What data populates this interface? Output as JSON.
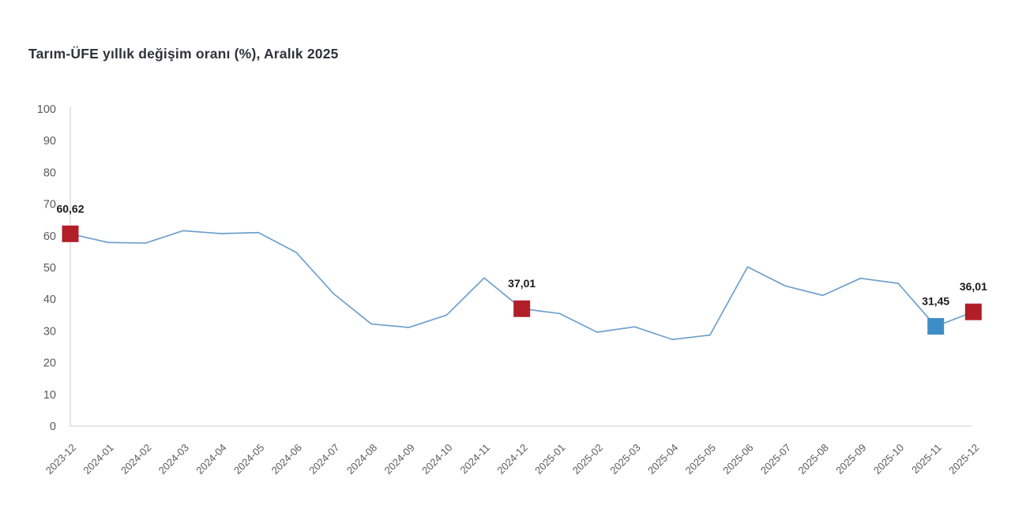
{
  "chart_data": {
    "type": "line",
    "title": "Tarım-ÜFE yıllık değişim oranı (%), Aralık 2025",
    "categories": [
      "2023-12",
      "2024-01",
      "2024-02",
      "2024-03",
      "2024-04",
      "2024-05",
      "2024-06",
      "2024-07",
      "2024-08",
      "2024-09",
      "2024-10",
      "2024-11",
      "2024-12",
      "2025-01",
      "2025-02",
      "2025-03",
      "2025-04",
      "2025-05",
      "2025-06",
      "2025-07",
      "2025-08",
      "2025-09",
      "2025-10",
      "2025-11",
      "2025-12"
    ],
    "values": [
      60.62,
      57.9,
      57.7,
      61.6,
      60.7,
      61.0,
      54.8,
      41.7,
      32.2,
      31.1,
      35.0,
      46.7,
      37.01,
      35.5,
      29.6,
      31.3,
      27.3,
      28.7,
      50.2,
      44.2,
      41.2,
      46.6,
      45.0,
      31.45,
      36.01
    ],
    "ylim": [
      0,
      100
    ],
    "y_ticks": [
      0,
      10,
      20,
      30,
      40,
      50,
      60,
      70,
      80,
      90,
      100
    ],
    "grid": false,
    "legend": "none",
    "x_tick_rotation": -45,
    "annotations": [
      {
        "index": 0,
        "label": "60,62",
        "marker": "marker_red"
      },
      {
        "index": 12,
        "label": "37,01",
        "marker": "marker_red"
      },
      {
        "index": 23,
        "label": "31,45",
        "marker": "marker_blue"
      },
      {
        "index": 24,
        "label": "36,01",
        "marker": "marker_red"
      }
    ],
    "colors": {
      "line": "#6FA0CC",
      "marker_red": "#B21E28",
      "marker_blue": "#3D8EC6",
      "axis": "#CBCBCB",
      "tick_label": "#5A5A5A",
      "annotation_label": "#1A1A1A",
      "title": "#32323C",
      "background": "#FFFFFF"
    }
  }
}
